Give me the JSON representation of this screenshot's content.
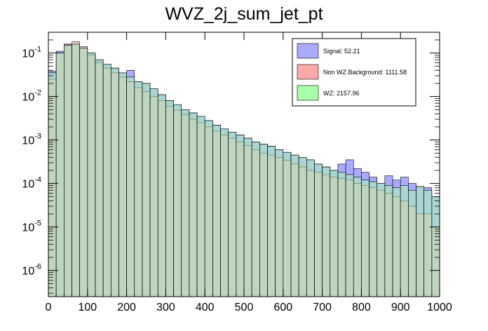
{
  "chart_data": {
    "type": "area",
    "title": "WVZ_2j_sum_jet_pt",
    "xlabel": "",
    "ylabel": "",
    "x_range": [
      0,
      1000
    ],
    "y_range": [
      2.5e-07,
      0.3
    ],
    "y_scale": "log",
    "grid": false,
    "legend_position": "top-right",
    "x_ticks": [
      0,
      100,
      200,
      300,
      400,
      500,
      600,
      700,
      800,
      900,
      1000
    ],
    "x_tick_labels": [
      "0",
      "100",
      "200",
      "300",
      "400",
      "500",
      "600",
      "700",
      "800",
      "900",
      "1000"
    ],
    "y_ticks": [
      1e-06,
      1e-05,
      0.0001,
      0.001,
      0.01,
      0.1
    ],
    "y_tick_labels": [
      "10^-6",
      "10^-5",
      "10^-4",
      "10^-3",
      "10^-2",
      "10^-1"
    ],
    "bin_width": 20,
    "x_bin_edges_start": 0,
    "series": [
      {
        "name": "Signal: 52.21",
        "color": "#aaaaff",
        "values": [
          0.038,
          0.11,
          0.16,
          0.16,
          0.13,
          0.1,
          0.07,
          0.055,
          0.045,
          0.035,
          0.04,
          0.022,
          0.02,
          0.015,
          0.011,
          0.008,
          0.0065,
          0.005,
          0.0042,
          0.0035,
          0.0028,
          0.0022,
          0.0018,
          0.0015,
          0.0013,
          0.0011,
          0.0009,
          0.0008,
          0.00072,
          0.0006,
          0.00052,
          0.00045,
          0.0004,
          0.00035,
          0.00028,
          0.00024,
          0.0002,
          0.00028,
          0.00035,
          0.00022,
          0.00018,
          0.00014,
          0.0001,
          0.00015,
          0.00012,
          0.00014,
          0.0001,
          8.5e-05,
          8e-05,
          5e-05
        ]
      },
      {
        "name": "Non WZ Background: 1111.58",
        "color": "#ffaaaa",
        "values": [
          0.025,
          0.1,
          0.16,
          0.18,
          0.14,
          0.09,
          0.06,
          0.045,
          0.035,
          0.028,
          0.022,
          0.016,
          0.013,
          0.01,
          0.008,
          0.006,
          0.0048,
          0.0038,
          0.003,
          0.0025,
          0.002,
          0.0016,
          0.0013,
          0.0011,
          0.0009,
          0.00075,
          0.0006,
          0.0005,
          0.00045,
          0.0004,
          0.00034,
          0.00028,
          0.00024,
          0.0002,
          0.00018,
          0.00016,
          0.00014,
          0.00013,
          0.00012,
          0.0001,
          9e-05,
          8e-05,
          7e-05,
          6e-05,
          5e-05,
          4e-05,
          3e-05,
          2e-05,
          2e-05,
          1e-05
        ]
      },
      {
        "name": "WZ: 2157.96",
        "color": "#aaffaa",
        "values": [
          0.035,
          0.1,
          0.15,
          0.16,
          0.13,
          0.1,
          0.07,
          0.055,
          0.045,
          0.035,
          0.028,
          0.022,
          0.02,
          0.015,
          0.011,
          0.008,
          0.0065,
          0.005,
          0.0042,
          0.0035,
          0.0028,
          0.0022,
          0.0018,
          0.0015,
          0.0013,
          0.0011,
          0.0009,
          0.0008,
          0.00072,
          0.0006,
          0.00052,
          0.00045,
          0.0004,
          0.00035,
          0.00028,
          0.00024,
          0.0002,
          0.00018,
          0.00016,
          0.00014,
          0.00012,
          0.00011,
          0.0001,
          9e-05,
          8e-05,
          9e-05,
          7e-05,
          8.5e-05,
          7e-05,
          5e-05
        ]
      }
    ]
  }
}
